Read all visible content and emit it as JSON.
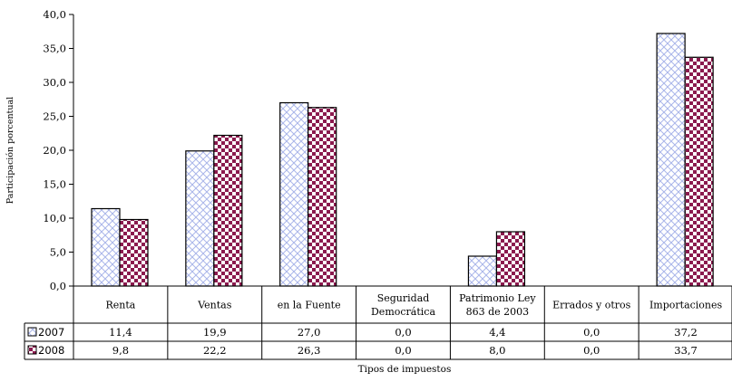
{
  "chart_data": {
    "type": "bar",
    "title": "",
    "xlabel": "Tipos de impuestos",
    "ylabel": "Participación porcentual",
    "ylim": [
      0,
      40
    ],
    "yticks": [
      "0,0",
      "5,0",
      "10,0",
      "15,0",
      "20,0",
      "25,0",
      "30,0",
      "35,0",
      "40,0"
    ],
    "grid": false,
    "legend": "data-table-left",
    "categories": [
      [
        "Renta"
      ],
      [
        "Ventas"
      ],
      [
        "en la Fuente"
      ],
      [
        "Seguridad",
        "Democrática"
      ],
      [
        "Patrimonio Ley",
        "863 de 2003"
      ],
      [
        "Errados y otros"
      ],
      [
        "Importaciones"
      ]
    ],
    "series": [
      {
        "name": "2007",
        "values": [
          11.4,
          19.9,
          27.0,
          0.0,
          4.4,
          0.0,
          37.2
        ],
        "labels": [
          "11,4",
          "19,9",
          "27,0",
          "0,0",
          "4,4",
          "0,0",
          "37,2"
        ],
        "pattern": "diagonal-crosshatch",
        "color": "#b8c4ee"
      },
      {
        "name": "2008",
        "values": [
          9.8,
          22.2,
          26.3,
          0.0,
          8.0,
          0.0,
          33.7
        ],
        "labels": [
          "9,8",
          "22,2",
          "26,3",
          "0,0",
          "8,0",
          "0,0",
          "33,7"
        ],
        "pattern": "checkerboard",
        "color": "#8b1a4e"
      }
    ]
  }
}
